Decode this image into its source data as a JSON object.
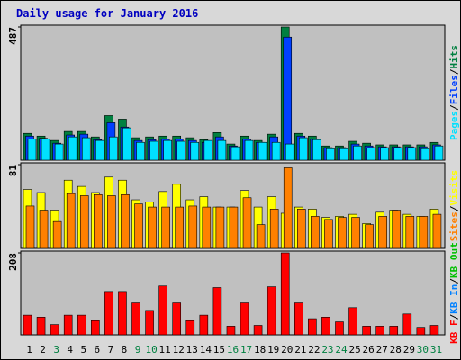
{
  "title": "Daily usage for January 2016",
  "categories": [
    "1",
    "2",
    "3",
    "4",
    "5",
    "6",
    "7",
    "8",
    "9",
    "10",
    "11",
    "12",
    "13",
    "14",
    "15",
    "16",
    "17",
    "18",
    "19",
    "20",
    "21",
    "22",
    "23",
    "24",
    "25",
    "26",
    "27",
    "28",
    "29",
    "30",
    "31"
  ],
  "category_colors": [
    "#000000",
    "#000000",
    "#008040",
    "#000000",
    "#000000",
    "#000000",
    "#000000",
    "#000000",
    "#008040",
    "#008040",
    "#000000",
    "#000000",
    "#000000",
    "#000000",
    "#000000",
    "#008040",
    "#008040",
    "#000000",
    "#000000",
    "#000000",
    "#000000",
    "#000000",
    "#008040",
    "#008040",
    "#000000",
    "#000000",
    "#000000",
    "#000000",
    "#000000",
    "#008040",
    "#008040"
  ],
  "legend_separator": "/",
  "chart_data": [
    {
      "type": "bar",
      "ylim": [
        0,
        487
      ],
      "yticks": [
        487
      ],
      "series": [
        {
          "name": "Hits",
          "color": "#008040",
          "values": [
            98,
            88,
            72,
            105,
            105,
            85,
            163,
            150,
            82,
            85,
            88,
            88,
            82,
            75,
            101,
            59,
            88,
            72,
            95,
            487,
            98,
            88,
            52,
            52,
            69,
            62,
            56,
            56,
            56,
            56,
            65
          ]
        },
        {
          "name": "Files",
          "color": "#0040ff",
          "values": [
            88,
            80,
            62,
            92,
            95,
            75,
            137,
            121,
            72,
            75,
            78,
            78,
            72,
            65,
            85,
            52,
            78,
            65,
            85,
            450,
            88,
            78,
            46,
            46,
            59,
            52,
            49,
            49,
            49,
            49,
            56
          ]
        },
        {
          "name": "Pages",
          "color": "#00e0ff",
          "values": [
            78,
            78,
            59,
            85,
            82,
            72,
            85,
            118,
            65,
            69,
            72,
            69,
            65,
            72,
            72,
            49,
            72,
            65,
            65,
            59,
            82,
            75,
            42,
            42,
            52,
            46,
            46,
            46,
            46,
            42,
            52
          ]
        }
      ]
    },
    {
      "type": "bar",
      "ylim": [
        0,
        81
      ],
      "yticks": [
        81
      ],
      "series": [
        {
          "name": "Visits",
          "color": "#ffff00",
          "values": [
            57,
            54,
            37,
            66,
            60,
            54,
            69,
            66,
            47,
            45,
            55,
            62,
            47,
            50,
            40,
            40,
            56,
            40,
            50,
            34,
            40,
            38,
            30,
            31,
            33,
            24,
            35,
            37,
            33,
            31,
            38
          ]
        },
        {
          "name": "Sites",
          "color": "#ff8000",
          "values": [
            41,
            37,
            26,
            53,
            51,
            52,
            51,
            52,
            43,
            40,
            40,
            40,
            41,
            40,
            40,
            40,
            49,
            23,
            38,
            78,
            38,
            31,
            28,
            30,
            30,
            23,
            31,
            37,
            31,
            31,
            33
          ]
        }
      ]
    },
    {
      "type": "bar",
      "ylim": [
        0,
        208
      ],
      "yticks": [
        208
      ],
      "series": [
        {
          "name": "KB F",
          "color": "#ff0000",
          "values": [
            50,
            45,
            26,
            50,
            50,
            36,
            110,
            110,
            81,
            62,
            124,
            81,
            36,
            50,
            120,
            22,
            81,
            24,
            122,
            208,
            81,
            41,
            45,
            33,
            69,
            22,
            22,
            22,
            53,
            19,
            24
          ]
        }
      ],
      "extra_legend": [
        {
          "name": "KB In",
          "color": "#0080ff"
        },
        {
          "name": "KB Out",
          "color": "#00c000"
        }
      ]
    }
  ]
}
